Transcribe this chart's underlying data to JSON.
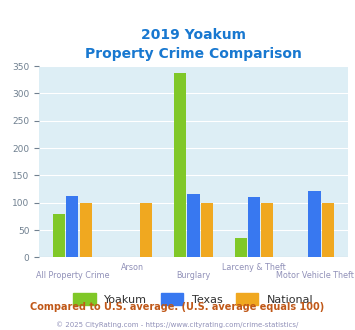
{
  "title_line1": "2019 Yoakum",
  "title_line2": "Property Crime Comparison",
  "categories": [
    "All Property Crime",
    "Arson",
    "Burglary",
    "Larceny & Theft",
    "Motor Vehicle Theft"
  ],
  "series": {
    "Yoakum": [
      80,
      0,
      338,
      35,
      0
    ],
    "Texas": [
      113,
      0,
      116,
      110,
      121
    ],
    "National": [
      100,
      100,
      100,
      100,
      100
    ]
  },
  "colors": {
    "Yoakum": "#80c828",
    "Texas": "#3878f0",
    "National": "#f0a820"
  },
  "ylim": [
    0,
    350
  ],
  "yticks": [
    0,
    50,
    100,
    150,
    200,
    250,
    300,
    350
  ],
  "bg_color": "#ddeef5",
  "title_color": "#1878d0",
  "xlabel_color": "#9090b8",
  "legend_text_color": "#303030",
  "footer_text": "Compared to U.S. average. (U.S. average equals 100)",
  "footer_color": "#c05818",
  "copyright_text": "© 2025 CityRating.com - https://www.cityrating.com/crime-statistics/",
  "copyright_color": "#9090b8",
  "grid_color": "#ffffff",
  "bar_width": 0.22
}
